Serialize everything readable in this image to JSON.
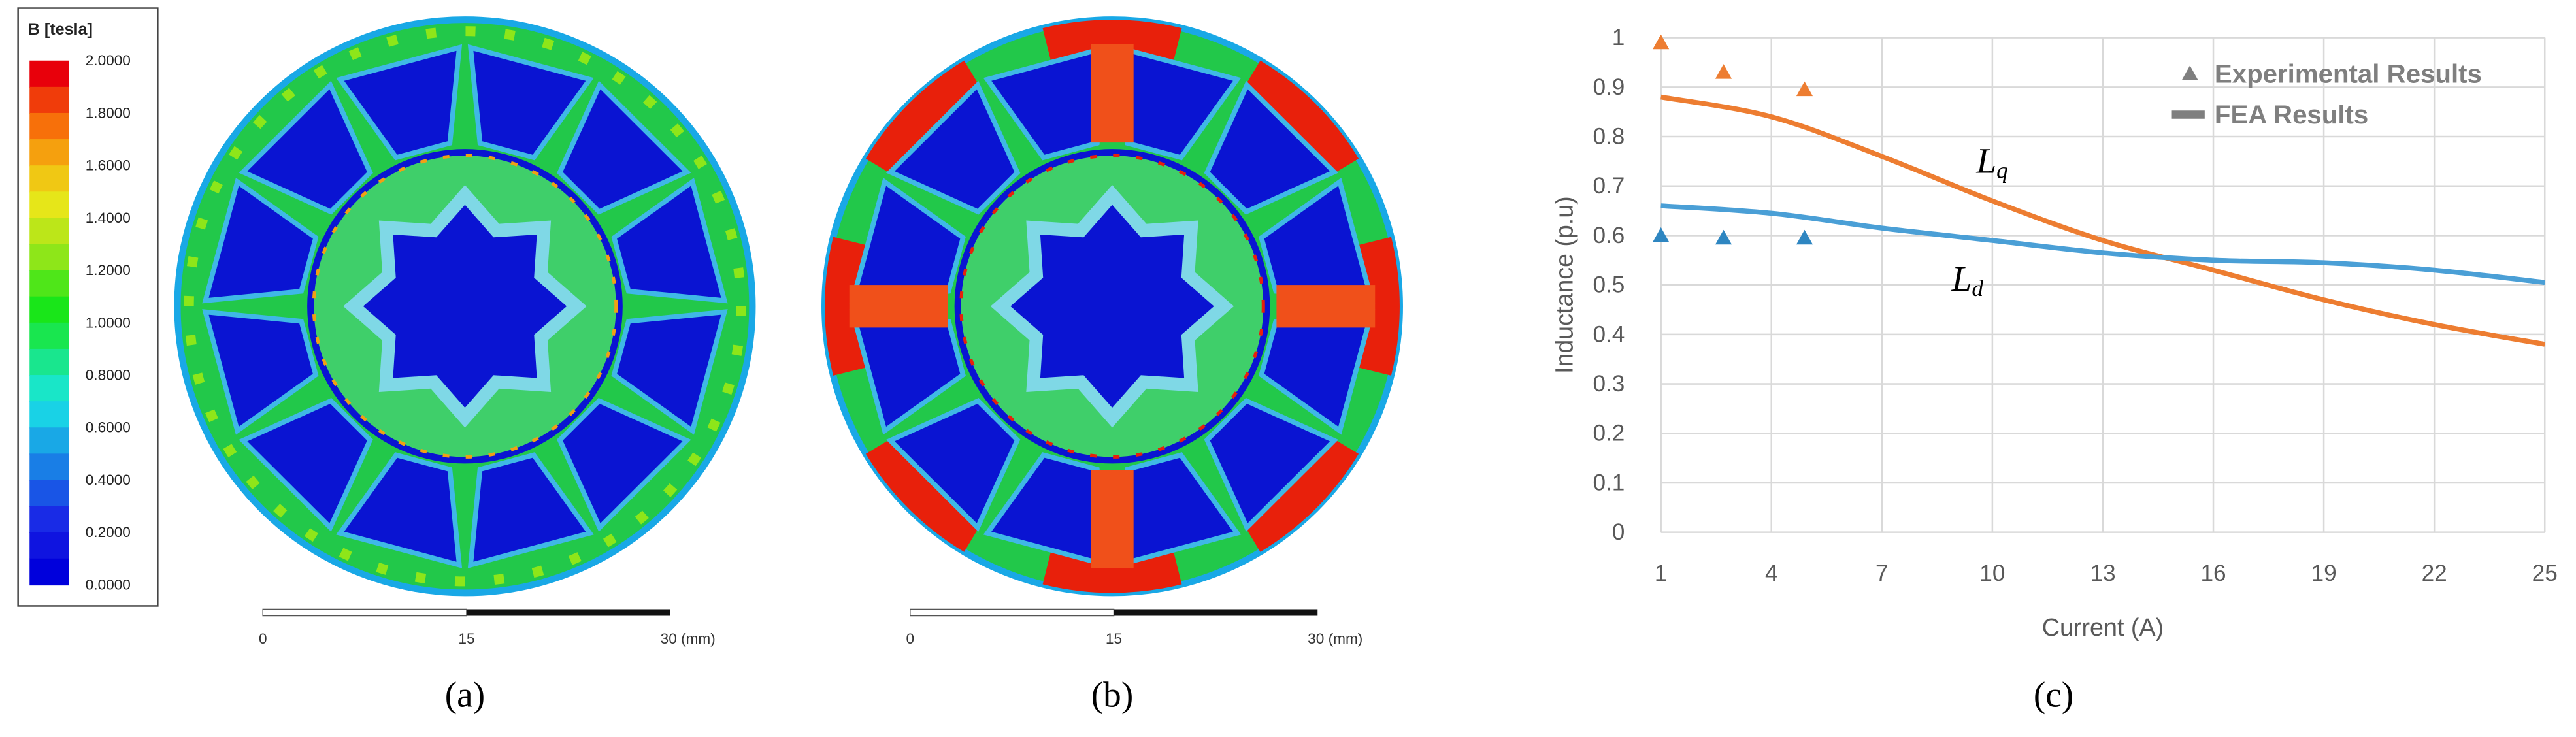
{
  "colorbar": {
    "title": "B [tesla]",
    "labels": [
      "2.0000",
      "1.8000",
      "1.6000",
      "1.4000",
      "1.2000",
      "1.0000",
      "0.8000",
      "0.6000",
      "0.4000",
      "0.2000",
      "0.0000"
    ]
  },
  "panels": [
    {
      "label": "(a)",
      "scale_labels": [
        "0",
        "15",
        "30 (mm)"
      ]
    },
    {
      "label": "(b)",
      "scale_labels": [
        "0",
        "15",
        "30 (mm)"
      ]
    }
  ],
  "chart_data": {
    "type": "line",
    "label": "(c)",
    "xlabel": "Current (A)",
    "ylabel": "Inductance (p.u)",
    "xlim": [
      1,
      25
    ],
    "xticks": [
      1,
      4,
      7,
      10,
      13,
      16,
      19,
      22,
      25
    ],
    "ylim": [
      0,
      1
    ],
    "yticks": [
      0,
      0.1,
      0.2,
      0.3,
      0.4,
      0.5,
      0.6,
      0.7,
      0.8,
      0.9,
      1
    ],
    "grid": true,
    "legend": [
      {
        "label": "Experimental Results",
        "marker": "triangle",
        "color": "#7f7f7f"
      },
      {
        "label": "FEA Results",
        "marker": "line",
        "color": "#7f7f7f"
      }
    ],
    "series": [
      {
        "label": "L",
        "sub": "q",
        "style": "line",
        "color": "#ed7d31",
        "x": [
          1,
          4,
          7,
          10,
          13,
          16,
          19,
          22,
          25
        ],
        "values": [
          0.88,
          0.84,
          0.76,
          0.67,
          0.59,
          0.53,
          0.47,
          0.42,
          0.38
        ]
      },
      {
        "label": "L",
        "sub": "d",
        "style": "line",
        "color": "#4a9fd6",
        "x": [
          1,
          4,
          7,
          10,
          13,
          16,
          19,
          22,
          25
        ],
        "values": [
          0.66,
          0.645,
          0.615,
          0.59,
          0.565,
          0.55,
          0.545,
          0.53,
          0.505
        ]
      },
      {
        "style": "triangle",
        "color": "#ed7d31",
        "x": [
          1,
          2.7,
          4.9
        ],
        "values": [
          0.99,
          0.93,
          0.895
        ]
      },
      {
        "style": "triangle",
        "color": "#2e86c1",
        "x": [
          1,
          2.7,
          4.9
        ],
        "values": [
          0.6,
          0.595,
          0.595
        ]
      }
    ]
  }
}
